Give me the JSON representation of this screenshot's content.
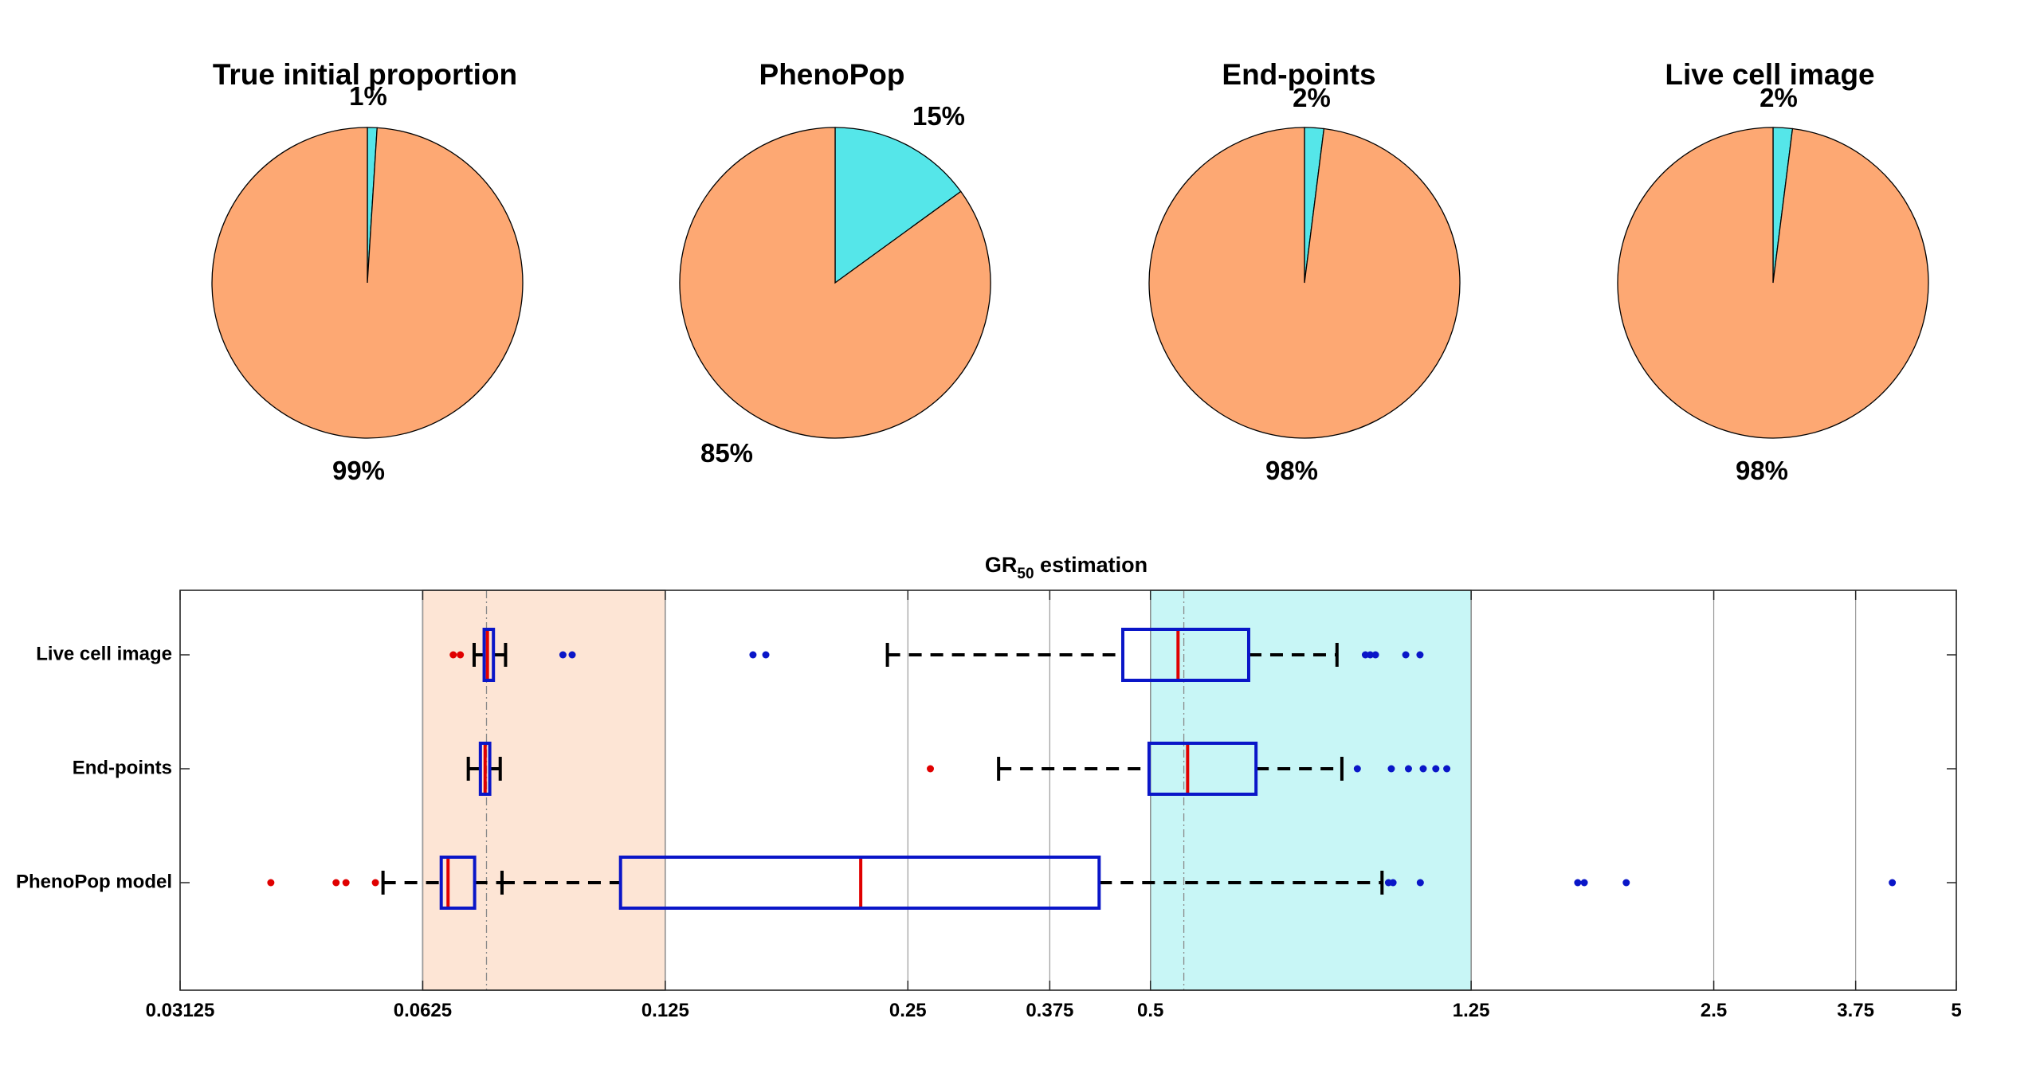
{
  "chart_data": [
    {
      "type": "pie",
      "title": "True initial proportion",
      "slices": [
        {
          "value": 1,
          "label": "1%",
          "color": "#55E6E9"
        },
        {
          "value": 99,
          "label": "99%",
          "color": "#FDA873"
        }
      ]
    },
    {
      "type": "pie",
      "title": "PhenoPop",
      "slices": [
        {
          "value": 15,
          "label": "15%",
          "color": "#55E6E9"
        },
        {
          "value": 85,
          "label": "85%",
          "color": "#FDA873"
        }
      ]
    },
    {
      "type": "pie",
      "title": "End-points",
      "slices": [
        {
          "value": 2,
          "label": "2%",
          "color": "#55E6E9"
        },
        {
          "value": 98,
          "label": "98%",
          "color": "#FDA873"
        }
      ]
    },
    {
      "type": "pie",
      "title": "Live cell image",
      "slices": [
        {
          "value": 2,
          "label": "2%",
          "color": "#55E6E9"
        },
        {
          "value": 98,
          "label": "98%",
          "color": "#FDA873"
        }
      ]
    },
    {
      "type": "boxplot",
      "title": "GR",
      "title_subscript": "50",
      "title_suffix": " estimation",
      "xscale": "log",
      "xlim": [
        0.03125,
        5
      ],
      "xticks": [
        0.03125,
        0.0625,
        0.125,
        0.25,
        0.375,
        0.5,
        1.25,
        2.5,
        3.75,
        5
      ],
      "xtick_labels": [
        "0.03125",
        "0.0625",
        "0.125",
        "0.25",
        "0.375",
        "0.5",
        "1.25",
        "2.5",
        "3.75",
        "5"
      ],
      "bands": [
        {
          "from": 0.0625,
          "to": 0.125,
          "color": "#FDE5D5",
          "reference_line": 0.075
        },
        {
          "from": 0.5,
          "to": 1.25,
          "color": "#C8F6F6",
          "reference_line": 0.55
        }
      ],
      "groups": [
        {
          "name": "Live cell image",
          "low": {
            "whisker_low": 0.0724,
            "q1": 0.0745,
            "median": 0.0752,
            "q3": 0.0765,
            "whisker_high": 0.0792,
            "outliers_low": [
              0.0682,
              0.0696
            ],
            "outliers_high": [
              0.0933,
              0.0958,
              0.1606,
              0.1666
            ]
          },
          "high": {
            "whisker_low": 0.2358,
            "q1": 0.462,
            "median": 0.541,
            "q3": 0.662,
            "whisker_high": 0.852,
            "outliers_low": [],
            "outliers_high": [
              0.924,
              0.937,
              0.951,
              1.037,
              1.08
            ]
          }
        },
        {
          "name": "End-points",
          "low": {
            "whisker_low": 0.0712,
            "q1": 0.0737,
            "median": 0.0747,
            "q3": 0.0757,
            "whisker_high": 0.078,
            "outliers_low": [],
            "outliers_high": []
          },
          "high": {
            "whisker_low": 0.324,
            "q1": 0.498,
            "median": 0.556,
            "q3": 0.676,
            "whisker_high": 0.864,
            "outliers_low": [
              0.2666
            ],
            "outliers_high": [
              0.903,
              0.995,
              1.045,
              1.09,
              1.13,
              1.166
            ]
          }
        },
        {
          "name": "PhenoPop model",
          "low": {
            "whisker_low": 0.0558,
            "q1": 0.0659,
            "median": 0.0672,
            "q3": 0.0725,
            "whisker_high": 0.0784,
            "outliers_low": [
              0.0405,
              0.0488,
              0.0502,
              0.0546
            ],
            "outliers_high": []
          },
          "high": {
            "whisker_low": 0.0784,
            "q1": 0.11,
            "median": 0.2185,
            "q3": 0.4318,
            "whisker_high": 0.969,
            "outliers_low": [],
            "outliers_high": [
              0.987,
              1.0,
              1.081,
              1.695,
              1.727,
              1.947,
              4.164
            ]
          }
        }
      ]
    }
  ]
}
